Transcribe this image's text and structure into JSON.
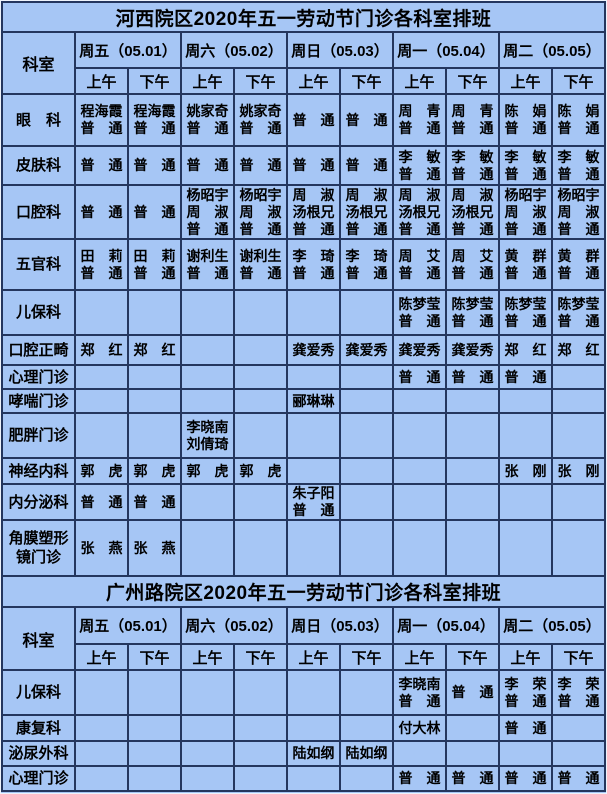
{
  "palette": {
    "background": "#a6c6f5",
    "grid_line": "#24365e",
    "text": "#000000"
  },
  "columns": {
    "corner": "科室",
    "days": [
      "周五（05.01）",
      "周六（05.02）",
      "周日（05.03）",
      "周一（05.04）",
      "周二（05.05）"
    ],
    "am": "上午",
    "pm": "下午"
  },
  "tables": [
    {
      "title": "河西院区2020年五一劳动节门诊各科室排班",
      "rows": [
        {
          "dept": "眼　科",
          "cells": [
            "程海霞\n普　通",
            "程海霞\n普　通",
            "姚家奇\n普　通",
            "姚家奇\n普　通",
            "普　通",
            "普　通",
            "周　青\n普　通",
            "周　青\n普　通",
            "陈　娟\n普　通",
            "陈　娟\n普　通"
          ]
        },
        {
          "dept": "皮肤科",
          "cells": [
            "普　通",
            "普　通",
            "普　通",
            "普　通",
            "普　通",
            "普　通",
            "李　敏\n普　通",
            "李　敏\n普　通",
            "李　敏\n普　通",
            "李　敏\n普　通"
          ]
        },
        {
          "dept": "口腔科",
          "cells": [
            "普　通",
            "普　通",
            "杨昭宇\n周　淑\n普　通",
            "杨昭宇\n周　淑\n普　通",
            "周　淑\n汤根兄\n普　通",
            "周　淑\n汤根兄\n普　通",
            "周　淑\n汤根兄\n普　通",
            "周　淑\n汤根兄\n普　通",
            "杨昭宇\n周　淑\n普　通",
            "杨昭宇\n周　淑\n普　通"
          ]
        },
        {
          "dept": "五官科",
          "cells": [
            "田　莉\n普　通",
            "田　莉\n普　通",
            "谢利生\n普　通",
            "谢利生\n普　通",
            "李　琦\n普　通",
            "李　琦\n普　通",
            "周　艾\n普　通",
            "周　艾\n普　通",
            "黄　群\n普　通",
            "黄　群\n普　通"
          ]
        },
        {
          "dept": "儿保科",
          "cells": [
            "",
            "",
            "",
            "",
            "",
            "",
            "陈梦莹\n普　通",
            "陈梦莹\n普　通",
            "陈梦莹\n普　通",
            "陈梦莹\n普　通"
          ]
        },
        {
          "dept": "口腔正畸",
          "cells": [
            "郑　红",
            "郑　红",
            "",
            "",
            "龚爱秀",
            "龚爱秀",
            "龚爱秀",
            "龚爱秀",
            "郑　红",
            "郑　红"
          ]
        },
        {
          "dept": "心理门诊",
          "cells": [
            "",
            "",
            "",
            "",
            "",
            "",
            "普　通",
            "普　通",
            "普　通",
            ""
          ]
        },
        {
          "dept": "哮喘门诊",
          "cells": [
            "",
            "",
            "",
            "",
            "郦琳琳",
            "",
            "",
            "",
            "",
            ""
          ]
        },
        {
          "dept": "肥胖门诊",
          "cells": [
            "",
            "",
            "李晓南\n刘倩琦",
            "",
            "",
            "",
            "",
            "",
            "",
            ""
          ]
        },
        {
          "dept": "神经内科",
          "cells": [
            "郭　虎",
            "郭　虎",
            "郭　虎",
            "郭　虎",
            "",
            "",
            "",
            "",
            "张　刚",
            "张　刚"
          ]
        },
        {
          "dept": "内分泌科",
          "cells": [
            "普　通",
            "普　通",
            "",
            "",
            "朱子阳\n普　通",
            "",
            "",
            "",
            "",
            ""
          ]
        },
        {
          "dept": "角膜塑形\n镜门诊",
          "cells": [
            "张　燕",
            "张　燕",
            "",
            "",
            "",
            "",
            "",
            "",
            "",
            ""
          ]
        }
      ]
    },
    {
      "title": "广州路院区2020年五一劳动节门诊各科室排班",
      "rows": [
        {
          "dept": "儿保科",
          "cells": [
            "",
            "",
            "",
            "",
            "",
            "",
            "李晓南\n普　通",
            "普　通",
            "李　荣\n普　通",
            "李　荣\n普　通"
          ]
        },
        {
          "dept": "康复科",
          "cells": [
            "",
            "",
            "",
            "",
            "",
            "",
            "付大林",
            "",
            "普　通",
            ""
          ]
        },
        {
          "dept": "泌尿外科",
          "cells": [
            "",
            "",
            "",
            "",
            "陆如纲",
            "陆如纲",
            "",
            "",
            "",
            ""
          ]
        },
        {
          "dept": "心理门诊",
          "cells": [
            "",
            "",
            "",
            "",
            "",
            "",
            "普　通",
            "普　通",
            "普　通",
            "普　通"
          ]
        }
      ]
    }
  ]
}
